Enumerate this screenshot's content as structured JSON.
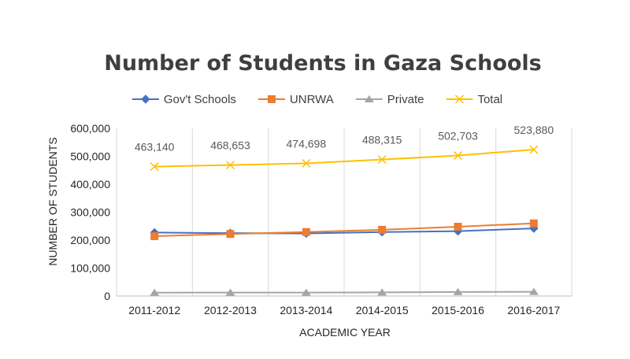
{
  "chart_data": {
    "type": "line",
    "title": "Number of Students in Gaza Schools",
    "xlabel": "ACADEMIC YEAR",
    "ylabel": "NUMBER OF STUDENTS",
    "categories": [
      "2011-2012",
      "2012-2013",
      "2013-2014",
      "2014-2015",
      "2015-2016",
      "2016-2017"
    ],
    "ylim": [
      0,
      600000
    ],
    "yticks": [
      0,
      100000,
      200000,
      300000,
      400000,
      500000,
      600000
    ],
    "ytick_labels": [
      "0",
      "100,000",
      "200,000",
      "300,000",
      "400,000",
      "500,000",
      "600,000"
    ],
    "grid": "vertical",
    "legend_position": "top",
    "series": [
      {
        "name": "Gov't Schools",
        "color": "#4472c4",
        "marker": "diamond",
        "values": [
          227000,
          225000,
          224000,
          229000,
          232000,
          242000
        ]
      },
      {
        "name": "UNRWA",
        "color": "#ed7d31",
        "marker": "square",
        "values": [
          214000,
          222000,
          229000,
          237000,
          248000,
          260000
        ]
      },
      {
        "name": "Private",
        "color": "#a5a5a5",
        "marker": "triangle",
        "values": [
          12000,
          12500,
          12300,
          13000,
          14500,
          15000
        ]
      },
      {
        "name": "Total",
        "color": "#ffc000",
        "marker": "x",
        "values": [
          463140,
          468653,
          474698,
          488315,
          502703,
          523880
        ],
        "data_labels": [
          "463,140",
          "468,653",
          "474,698",
          "488,315",
          "502,703",
          "523,880"
        ]
      }
    ]
  }
}
